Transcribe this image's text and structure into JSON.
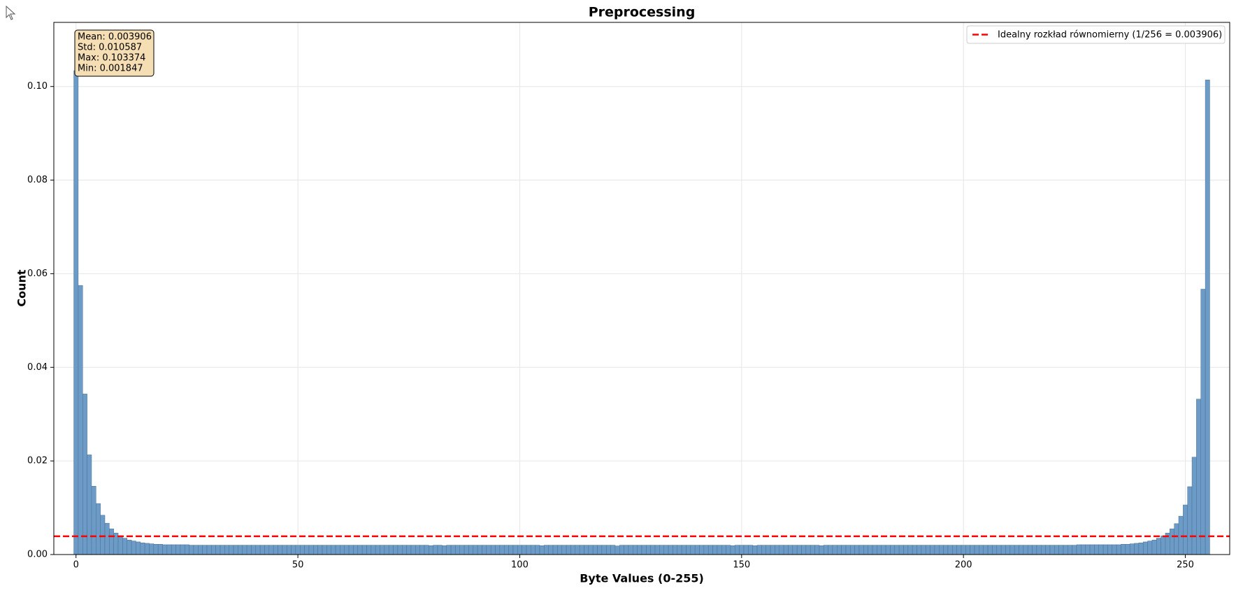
{
  "chart_data": {
    "type": "histogram",
    "title": "Preprocessing",
    "xlabel": "Byte Values (0-255)",
    "ylabel": "Count",
    "color": "#6b9bc6",
    "edgecolor": "#4a6f90",
    "grid": true,
    "legend": "upper right",
    "stats": [
      "Mean: 0.003906",
      "Std: 0.010587",
      "Max: 0.103374",
      "Min: 0.001847"
    ],
    "hline": {
      "value": 0.003906,
      "label": "Idealny rozkład równomierny (1/256 = 0.003906)",
      "color": "#ff0000"
    },
    "xlim": [
      -5,
      260
    ],
    "ylim": [
      0,
      0.1137
    ],
    "xticks": [
      0,
      50,
      100,
      150,
      200,
      250
    ],
    "yticks": [
      {
        "value": 0,
        "label": "0.00"
      },
      {
        "value": 0.02,
        "label": "0.02"
      },
      {
        "value": 0.04,
        "label": "0.04"
      },
      {
        "value": 0.06,
        "label": "0.06"
      },
      {
        "value": 0.08,
        "label": "0.08"
      },
      {
        "value": 0.1,
        "label": "0.10"
      }
    ],
    "bins": [
      -0.5,
      0.5,
      1.5,
      2.5,
      3.5,
      4.5,
      5.5,
      6.5,
      7.5,
      8.5,
      9.5,
      10.5,
      11.5,
      12.5,
      13.5,
      14.5,
      15.5,
      16.5,
      17.5,
      18.5,
      19.5,
      20.5,
      21.5,
      22.5,
      23.5,
      24.5,
      25.5,
      26.5,
      27.5,
      28.5,
      29.5,
      30.5,
      31.5,
      32.5,
      33.5,
      34.5,
      35.5,
      36.5,
      37.5,
      38.5,
      39.5,
      40.5,
      41.5,
      42.5,
      43.5,
      44.5,
      45.5,
      46.5,
      47.5,
      48.5,
      49.5,
      50.5,
      51.5,
      52.5,
      53.5,
      54.5,
      55.5,
      56.5,
      57.5,
      58.5,
      59.5,
      60.5,
      61.5,
      62.5,
      63.5,
      64.5,
      65.5,
      66.5,
      67.5,
      68.5,
      69.5,
      70.5,
      71.5,
      72.5,
      73.5,
      74.5,
      75.5,
      76.5,
      77.5,
      78.5,
      79.5,
      80.5,
      81.5,
      82.5,
      83.5,
      84.5,
      85.5,
      86.5,
      87.5,
      88.5,
      89.5,
      90.5,
      91.5,
      92.5,
      93.5,
      94.5,
      95.5,
      96.5,
      97.5,
      98.5,
      99.5,
      100.5,
      101.5,
      102.5,
      103.5,
      104.5,
      105.5,
      106.5,
      107.5,
      108.5,
      109.5,
      110.5,
      111.5,
      112.5,
      113.5,
      114.5,
      115.5,
      116.5,
      117.5,
      118.5,
      119.5,
      120.5,
      121.5,
      122.5,
      123.5,
      124.5,
      125.5,
      126.5,
      127.5,
      128.5,
      129.5,
      130.5,
      131.5,
      132.5,
      133.5,
      134.5,
      135.5,
      136.5,
      137.5,
      138.5,
      139.5,
      140.5,
      141.5,
      142.5,
      143.5,
      144.5,
      145.5,
      146.5,
      147.5,
      148.5,
      149.5,
      150.5,
      151.5,
      152.5,
      153.5,
      154.5,
      155.5,
      156.5,
      157.5,
      158.5,
      159.5,
      160.5,
      161.5,
      162.5,
      163.5,
      164.5,
      165.5,
      166.5,
      167.5,
      168.5,
      169.5,
      170.5,
      171.5,
      172.5,
      173.5,
      174.5,
      175.5,
      176.5,
      177.5,
      178.5,
      179.5,
      180.5,
      181.5,
      182.5,
      183.5,
      184.5,
      185.5,
      186.5,
      187.5,
      188.5,
      189.5,
      190.5,
      191.5,
      192.5,
      193.5,
      194.5,
      195.5,
      196.5,
      197.5,
      198.5,
      199.5,
      200.5,
      201.5,
      202.5,
      203.5,
      204.5,
      205.5,
      206.5,
      207.5,
      208.5,
      209.5,
      210.5,
      211.5,
      212.5,
      213.5,
      214.5,
      215.5,
      216.5,
      217.5,
      218.5,
      219.5,
      220.5,
      221.5,
      222.5,
      223.5,
      224.5,
      225.5,
      226.5,
      227.5,
      228.5,
      229.5,
      230.5,
      231.5,
      232.5,
      233.5,
      234.5,
      235.5,
      236.5,
      237.5,
      238.5,
      239.5,
      240.5,
      241.5,
      242.5,
      243.5,
      244.5,
      245.5,
      246.5,
      247.5,
      248.5,
      249.5,
      250.5,
      251.5,
      252.5,
      253.5,
      254.5,
      255.5
    ],
    "values": [
      0.103374,
      0.0575,
      0.0343,
      0.0213,
      0.0146,
      0.0109,
      0.0084,
      0.0067,
      0.0055,
      0.0046,
      0.004,
      0.0035,
      0.0031,
      0.0029,
      0.0027,
      0.0025,
      0.0024,
      0.0023,
      0.0022,
      0.0022,
      0.0021,
      0.0021,
      0.0021,
      0.0021,
      0.0021,
      0.0021,
      0.002,
      0.002,
      0.002,
      0.002,
      0.002,
      0.002,
      0.002,
      0.002,
      0.002,
      0.002,
      0.002,
      0.002,
      0.002,
      0.002,
      0.002,
      0.002,
      0.002,
      0.002,
      0.002,
      0.002,
      0.002,
      0.002,
      0.002,
      0.002,
      0.002,
      0.002,
      0.002,
      0.002,
      0.002,
      0.002,
      0.002,
      0.002,
      0.002,
      0.002,
      0.002,
      0.002,
      0.002,
      0.002,
      0.002,
      0.002,
      0.002,
      0.002,
      0.002,
      0.002,
      0.002,
      0.002,
      0.002,
      0.002,
      0.002,
      0.002,
      0.002,
      0.002,
      0.002,
      0.002,
      0.0019,
      0.002,
      0.002,
      0.0019,
      0.002,
      0.002,
      0.002,
      0.002,
      0.002,
      0.002,
      0.002,
      0.002,
      0.002,
      0.002,
      0.002,
      0.002,
      0.002,
      0.002,
      0.002,
      0.002,
      0.002,
      0.002,
      0.002,
      0.002,
      0.002,
      0.0019,
      0.002,
      0.002,
      0.002,
      0.002,
      0.002,
      0.002,
      0.002,
      0.002,
      0.002,
      0.002,
      0.002,
      0.002,
      0.002,
      0.002,
      0.002,
      0.002,
      0.001847,
      0.002,
      0.002,
      0.002,
      0.002,
      0.002,
      0.002,
      0.002,
      0.002,
      0.002,
      0.002,
      0.002,
      0.002,
      0.002,
      0.002,
      0.002,
      0.002,
      0.002,
      0.002,
      0.002,
      0.002,
      0.002,
      0.002,
      0.002,
      0.002,
      0.002,
      0.0019,
      0.002,
      0.002,
      0.002,
      0.002,
      0.0019,
      0.002,
      0.002,
      0.002,
      0.002,
      0.002,
      0.002,
      0.002,
      0.002,
      0.002,
      0.002,
      0.002,
      0.002,
      0.002,
      0.002,
      0.0019,
      0.002,
      0.002,
      0.002,
      0.002,
      0.002,
      0.002,
      0.002,
      0.002,
      0.002,
      0.002,
      0.002,
      0.002,
      0.002,
      0.002,
      0.002,
      0.002,
      0.002,
      0.002,
      0.002,
      0.002,
      0.002,
      0.002,
      0.002,
      0.002,
      0.002,
      0.002,
      0.002,
      0.002,
      0.002,
      0.002,
      0.002,
      0.002,
      0.002,
      0.002,
      0.002,
      0.002,
      0.002,
      0.002,
      0.002,
      0.002,
      0.002,
      0.002,
      0.002,
      0.002,
      0.002,
      0.002,
      0.002,
      0.002,
      0.002,
      0.002,
      0.002,
      0.002,
      0.002,
      0.002,
      0.002,
      0.002,
      0.002,
      0.0021,
      0.0021,
      0.0021,
      0.0021,
      0.0021,
      0.0021,
      0.0021,
      0.0021,
      0.0021,
      0.0021,
      0.0022,
      0.0022,
      0.0023,
      0.0024,
      0.0025,
      0.0027,
      0.0029,
      0.0031,
      0.0035,
      0.004,
      0.0046,
      0.0055,
      0.0066,
      0.0082,
      0.0106,
      0.0145,
      0.0208,
      0.0332,
      0.0567,
      0.1014
    ]
  }
}
